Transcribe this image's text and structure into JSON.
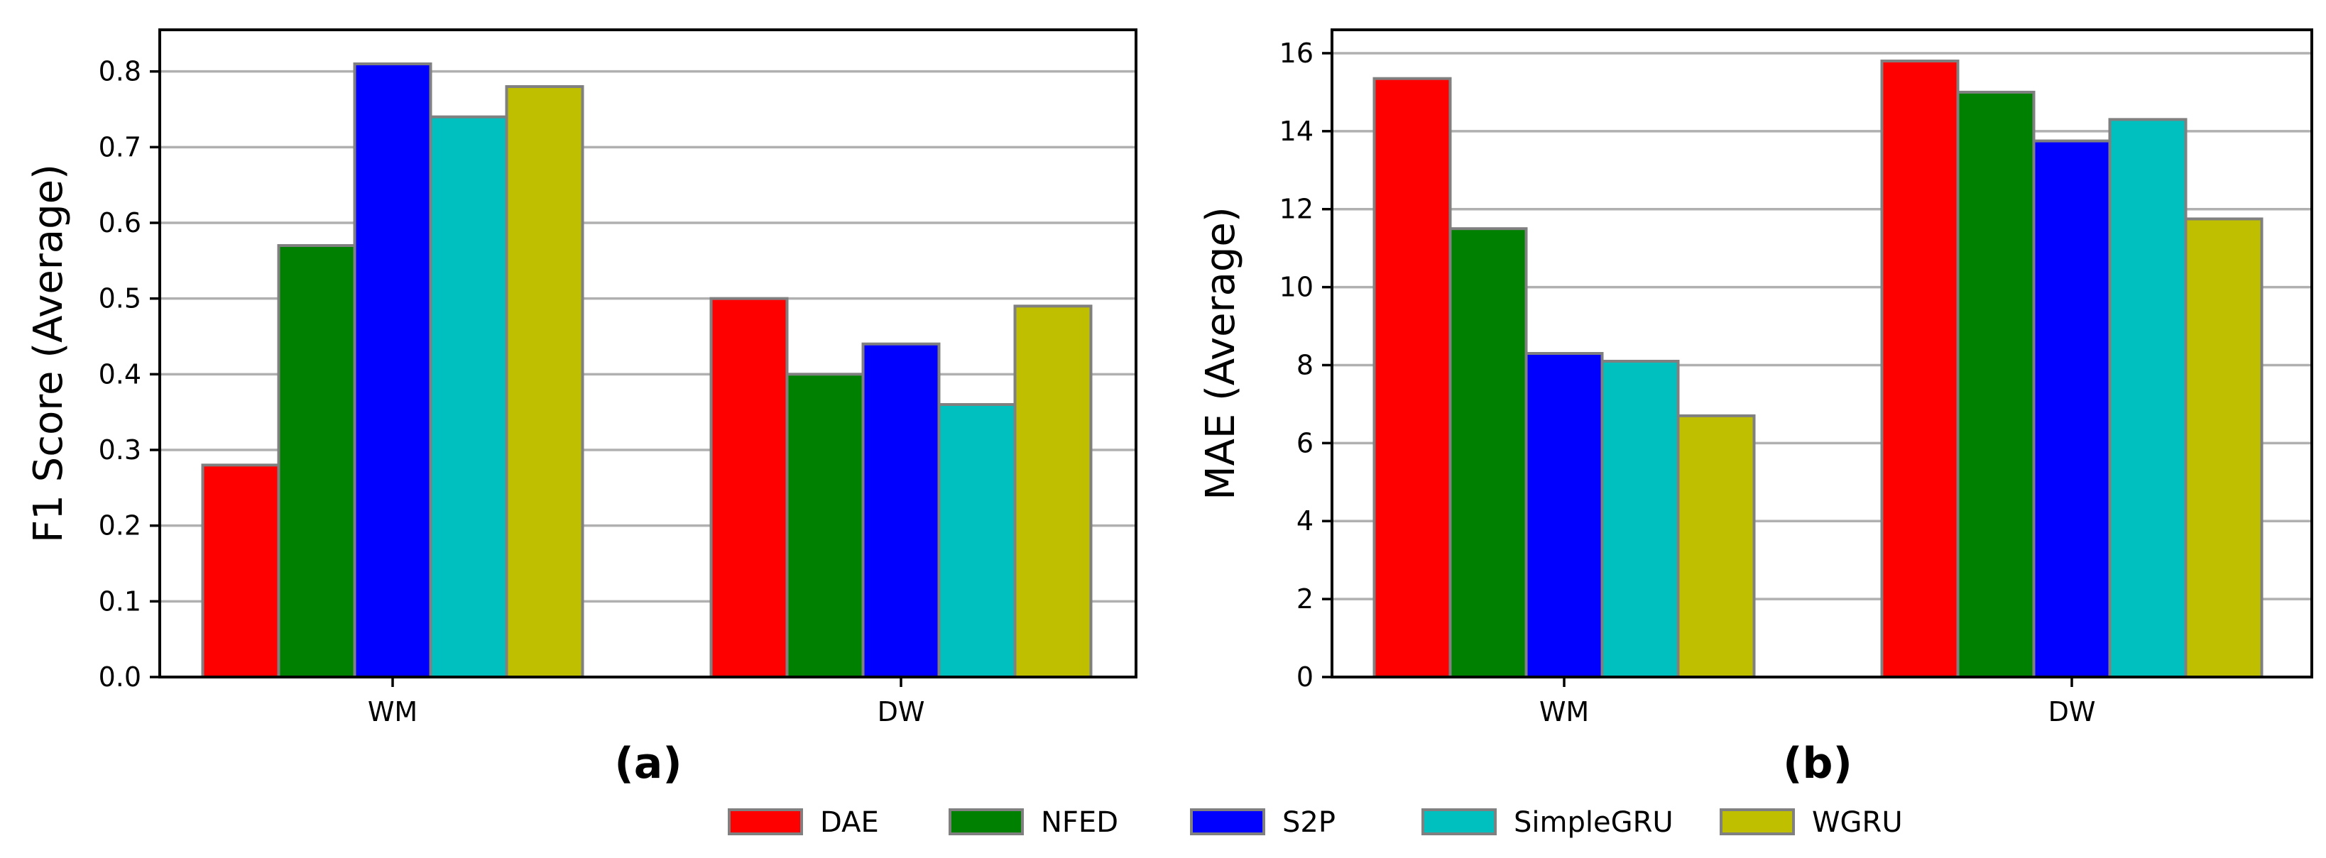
{
  "chart_data": [
    {
      "type": "bar",
      "panel_label": "(a)",
      "ylabel": "F1 Score (Average)",
      "xlabel": "",
      "categories": [
        "WM",
        "DW"
      ],
      "ylim": [
        0,
        0.855
      ],
      "yticks": [
        0.0,
        0.1,
        0.2,
        0.3,
        0.4,
        0.5,
        0.6,
        0.7,
        0.8
      ],
      "ytick_labels": [
        "0.0",
        "0.1",
        "0.2",
        "0.3",
        "0.4",
        "0.5",
        "0.6",
        "0.7",
        "0.8"
      ],
      "grid": "horizontal",
      "series": [
        {
          "name": "DAE",
          "values": [
            0.28,
            0.5
          ]
        },
        {
          "name": "NFED",
          "values": [
            0.57,
            0.4
          ]
        },
        {
          "name": "S2P",
          "values": [
            0.81,
            0.44
          ]
        },
        {
          "name": "SimpleGRU",
          "values": [
            0.74,
            0.36
          ]
        },
        {
          "name": "WGRU",
          "values": [
            0.78,
            0.49
          ]
        }
      ]
    },
    {
      "type": "bar",
      "panel_label": "(b)",
      "ylabel": "MAE (Average)",
      "xlabel": "",
      "categories": [
        "WM",
        "DW"
      ],
      "ylim": [
        0,
        16.6
      ],
      "yticks": [
        0,
        2,
        4,
        6,
        8,
        10,
        12,
        14,
        16
      ],
      "ytick_labels": [
        "0",
        "2",
        "4",
        "6",
        "8",
        "10",
        "12",
        "14",
        "16"
      ],
      "grid": "horizontal",
      "series": [
        {
          "name": "DAE",
          "values": [
            15.35,
            15.8
          ]
        },
        {
          "name": "NFED",
          "values": [
            11.5,
            15.0
          ]
        },
        {
          "name": "S2P",
          "values": [
            8.3,
            13.75
          ]
        },
        {
          "name": "SimpleGRU",
          "values": [
            8.1,
            14.3
          ]
        },
        {
          "name": "WGRU",
          "values": [
            6.7,
            11.75
          ]
        }
      ]
    }
  ],
  "legend": {
    "placement": "bottom-center",
    "entries": [
      "DAE",
      "NFED",
      "S2P",
      "SimpleGRU",
      "WGRU"
    ]
  },
  "colors": {
    "DAE": "#ff0000",
    "NFED": "#008000",
    "S2P": "#0000ff",
    "SimpleGRU": "#00bfbf",
    "WGRU": "#bfbf00",
    "bar_edge": "#808080",
    "grid": "#b0b0b0"
  }
}
